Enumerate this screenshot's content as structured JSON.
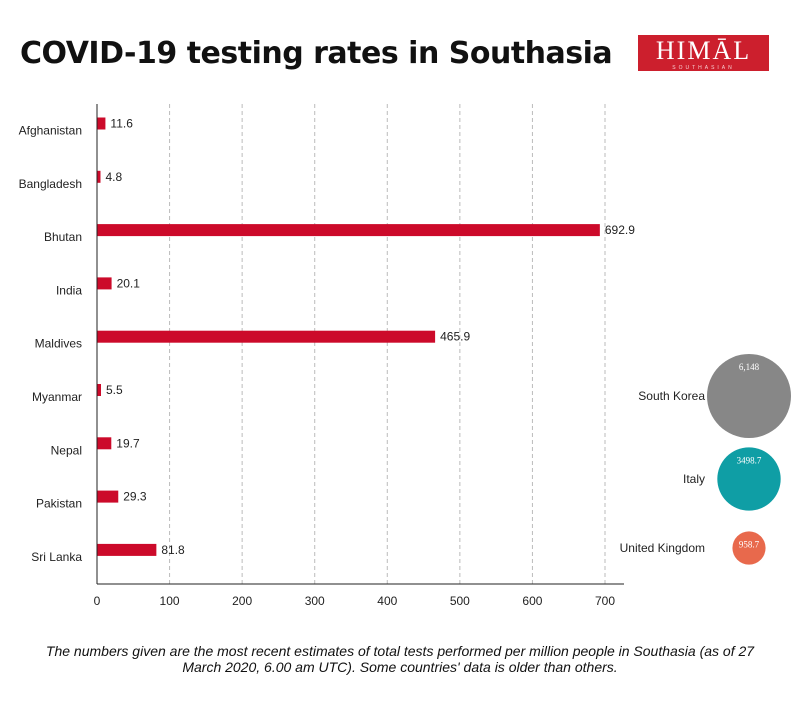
{
  "title": "COVID-19 testing rates in Southasia",
  "logo": {
    "main": "HIMĀL",
    "sub": "SOUTHASIAN"
  },
  "footnote": "The numbers given are the most recent estimates of total tests performed per million people in Southasia (as of 27 March 2020, 6.00 am UTC).  Some countries' data is older than others.",
  "colors": {
    "bar": "#cc0a2a",
    "grid": "#bbbbbb",
    "axis": "#222222"
  },
  "chart_data": {
    "type": "bar",
    "orientation": "horizontal",
    "categories": [
      "Afghanistan",
      "Bangladesh",
      "Bhutan",
      "India",
      "Maldives",
      "Myanmar",
      "Nepal",
      "Pakistan",
      "Sri Lanka"
    ],
    "values": [
      11.6,
      4.8,
      692.9,
      20.1,
      465.9,
      5.5,
      19.7,
      29.3,
      81.8
    ],
    "value_labels": [
      "11.6",
      "4.8",
      "692.9",
      "20.1",
      "465.9",
      "5.5",
      "19.7",
      "29.3",
      "81.8"
    ],
    "xticks": [
      0,
      100,
      200,
      300,
      400,
      500,
      600,
      700
    ],
    "xlim": [
      0,
      720
    ],
    "grid": "vertical dashed",
    "comparison": [
      {
        "name": "South Korea",
        "value": 6148,
        "label": "6,148",
        "color": "#878787"
      },
      {
        "name": "Italy",
        "value": 3498.7,
        "label": "3498.7",
        "color": "#0f9ea5"
      },
      {
        "name": "United Kingdom",
        "value": 958.7,
        "label": "958.7",
        "color": "#e8694c"
      }
    ]
  }
}
